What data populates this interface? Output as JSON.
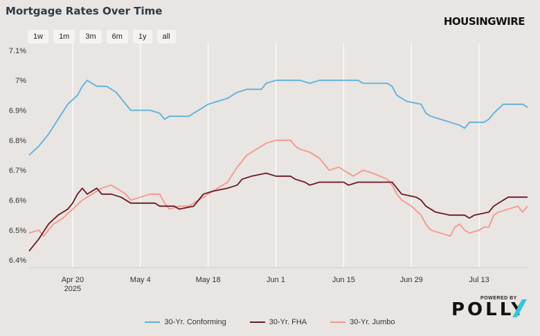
{
  "header": {
    "title": "Mortgage Rates Over Time",
    "brand": "HOUSINGWIRE"
  },
  "range_buttons": [
    "1w",
    "1m",
    "3m",
    "6m",
    "1y",
    "all"
  ],
  "footer": {
    "powered_by": "POWERED BY",
    "logo": "POLLY"
  },
  "colors": {
    "background": "#e8e5e2",
    "conforming": "#5bb0dc",
    "fha": "#6e1524",
    "jumbo": "#f7958c",
    "polly_accent": "#38c6d9"
  },
  "chart_data": {
    "type": "line",
    "title": "Mortgage Rates Over Time",
    "xlabel": "",
    "ylabel": "",
    "x_range": [
      "2025-04-11",
      "2025-07-23"
    ],
    "ylim": [
      6.375,
      7.125
    ],
    "x_ticks": [
      {
        "date": "2025-04-20",
        "label": "Apr 20",
        "sublabel": "2025"
      },
      {
        "date": "2025-05-04",
        "label": "May 4"
      },
      {
        "date": "2025-05-18",
        "label": "May 18"
      },
      {
        "date": "2025-06-01",
        "label": "Jun 1"
      },
      {
        "date": "2025-06-15",
        "label": "Jun 15"
      },
      {
        "date": "2025-06-29",
        "label": "Jun 29"
      },
      {
        "date": "2025-07-13",
        "label": "Jul 13"
      }
    ],
    "y_ticks": [
      {
        "value": 6.4,
        "label": "6.4%"
      },
      {
        "value": 6.5,
        "label": "6.5%"
      },
      {
        "value": 6.6,
        "label": "6.6%"
      },
      {
        "value": 6.7,
        "label": "6.7%"
      },
      {
        "value": 6.8,
        "label": "6.8%"
      },
      {
        "value": 6.9,
        "label": "6.9%"
      },
      {
        "value": 7.0,
        "label": "7%"
      },
      {
        "value": 7.1,
        "label": "7.1%"
      }
    ],
    "grid": "vertical",
    "legend_position": "bottom",
    "series": [
      {
        "name": "30-Yr. Conforming",
        "color": "#5bb0dc",
        "points": [
          [
            "2025-04-11",
            6.75
          ],
          [
            "2025-04-13",
            6.78
          ],
          [
            "2025-04-15",
            6.82
          ],
          [
            "2025-04-17",
            6.87
          ],
          [
            "2025-04-19",
            6.92
          ],
          [
            "2025-04-21",
            6.95
          ],
          [
            "2025-04-22",
            6.98
          ],
          [
            "2025-04-23",
            7.0
          ],
          [
            "2025-04-25",
            6.98
          ],
          [
            "2025-04-27",
            6.98
          ],
          [
            "2025-04-29",
            6.96
          ],
          [
            "2025-04-30",
            6.94
          ],
          [
            "2025-05-01",
            6.92
          ],
          [
            "2025-05-02",
            6.9
          ],
          [
            "2025-05-04",
            6.9
          ],
          [
            "2025-05-06",
            6.9
          ],
          [
            "2025-05-08",
            6.89
          ],
          [
            "2025-05-09",
            6.87
          ],
          [
            "2025-05-10",
            6.88
          ],
          [
            "2025-05-12",
            6.88
          ],
          [
            "2025-05-14",
            6.88
          ],
          [
            "2025-05-15",
            6.89
          ],
          [
            "2025-05-16",
            6.9
          ],
          [
            "2025-05-17",
            6.91
          ],
          [
            "2025-05-18",
            6.92
          ],
          [
            "2025-05-20",
            6.93
          ],
          [
            "2025-05-22",
            6.94
          ],
          [
            "2025-05-24",
            6.96
          ],
          [
            "2025-05-26",
            6.97
          ],
          [
            "2025-05-28",
            6.97
          ],
          [
            "2025-05-29",
            6.97
          ],
          [
            "2025-05-30",
            6.99
          ],
          [
            "2025-06-01",
            7.0
          ],
          [
            "2025-06-04",
            7.0
          ],
          [
            "2025-06-06",
            7.0
          ],
          [
            "2025-06-08",
            6.99
          ],
          [
            "2025-06-10",
            7.0
          ],
          [
            "2025-06-12",
            7.0
          ],
          [
            "2025-06-15",
            7.0
          ],
          [
            "2025-06-18",
            7.0
          ],
          [
            "2025-06-19",
            6.99
          ],
          [
            "2025-06-22",
            6.99
          ],
          [
            "2025-06-24",
            6.99
          ],
          [
            "2025-06-25",
            6.98
          ],
          [
            "2025-06-26",
            6.95
          ],
          [
            "2025-06-28",
            6.93
          ],
          [
            "2025-07-01",
            6.92
          ],
          [
            "2025-07-02",
            6.89
          ],
          [
            "2025-07-03",
            6.88
          ],
          [
            "2025-07-05",
            6.87
          ],
          [
            "2025-07-07",
            6.86
          ],
          [
            "2025-07-09",
            6.85
          ],
          [
            "2025-07-10",
            6.84
          ],
          [
            "2025-07-11",
            6.86
          ],
          [
            "2025-07-14",
            6.86
          ],
          [
            "2025-07-15",
            6.87
          ],
          [
            "2025-07-16",
            6.89
          ],
          [
            "2025-07-18",
            6.92
          ],
          [
            "2025-07-20",
            6.92
          ],
          [
            "2025-07-22",
            6.92
          ],
          [
            "2025-07-23",
            6.91
          ]
        ]
      },
      {
        "name": "30-Yr. FHA",
        "color": "#6e1524",
        "points": [
          [
            "2025-04-11",
            6.43
          ],
          [
            "2025-04-13",
            6.47
          ],
          [
            "2025-04-15",
            6.52
          ],
          [
            "2025-04-17",
            6.55
          ],
          [
            "2025-04-19",
            6.57
          ],
          [
            "2025-04-20",
            6.59
          ],
          [
            "2025-04-21",
            6.62
          ],
          [
            "2025-04-22",
            6.64
          ],
          [
            "2025-04-23",
            6.62
          ],
          [
            "2025-04-25",
            6.64
          ],
          [
            "2025-04-26",
            6.62
          ],
          [
            "2025-04-28",
            6.62
          ],
          [
            "2025-04-30",
            6.61
          ],
          [
            "2025-05-02",
            6.59
          ],
          [
            "2025-05-04",
            6.59
          ],
          [
            "2025-05-07",
            6.59
          ],
          [
            "2025-05-08",
            6.58
          ],
          [
            "2025-05-11",
            6.58
          ],
          [
            "2025-05-12",
            6.57
          ],
          [
            "2025-05-15",
            6.58
          ],
          [
            "2025-05-16",
            6.6
          ],
          [
            "2025-05-17",
            6.62
          ],
          [
            "2025-05-19",
            6.63
          ],
          [
            "2025-05-22",
            6.64
          ],
          [
            "2025-05-24",
            6.65
          ],
          [
            "2025-05-25",
            6.67
          ],
          [
            "2025-05-27",
            6.68
          ],
          [
            "2025-05-30",
            6.69
          ],
          [
            "2025-06-01",
            6.68
          ],
          [
            "2025-06-04",
            6.68
          ],
          [
            "2025-06-05",
            6.67
          ],
          [
            "2025-06-07",
            6.66
          ],
          [
            "2025-06-08",
            6.65
          ],
          [
            "2025-06-10",
            6.66
          ],
          [
            "2025-06-15",
            6.66
          ],
          [
            "2025-06-16",
            6.65
          ],
          [
            "2025-06-18",
            6.66
          ],
          [
            "2025-06-22",
            6.66
          ],
          [
            "2025-06-25",
            6.66
          ],
          [
            "2025-06-26",
            6.64
          ],
          [
            "2025-06-27",
            6.62
          ],
          [
            "2025-06-30",
            6.61
          ],
          [
            "2025-07-01",
            6.6
          ],
          [
            "2025-07-02",
            6.58
          ],
          [
            "2025-07-04",
            6.56
          ],
          [
            "2025-07-07",
            6.55
          ],
          [
            "2025-07-10",
            6.55
          ],
          [
            "2025-07-11",
            6.54
          ],
          [
            "2025-07-12",
            6.55
          ],
          [
            "2025-07-15",
            6.56
          ],
          [
            "2025-07-16",
            6.58
          ],
          [
            "2025-07-17",
            6.59
          ],
          [
            "2025-07-18",
            6.6
          ],
          [
            "2025-07-19",
            6.61
          ],
          [
            "2025-07-23",
            6.61
          ]
        ]
      },
      {
        "name": "30-Yr. Jumbo",
        "color": "#f7958c",
        "points": [
          [
            "2025-04-11",
            6.49
          ],
          [
            "2025-04-13",
            6.5
          ],
          [
            "2025-04-14",
            6.48
          ],
          [
            "2025-04-16",
            6.52
          ],
          [
            "2025-04-18",
            6.54
          ],
          [
            "2025-04-20",
            6.57
          ],
          [
            "2025-04-22",
            6.6
          ],
          [
            "2025-04-24",
            6.62
          ],
          [
            "2025-04-26",
            6.64
          ],
          [
            "2025-04-28",
            6.65
          ],
          [
            "2025-04-30",
            6.63
          ],
          [
            "2025-05-01",
            6.62
          ],
          [
            "2025-05-02",
            6.6
          ],
          [
            "2025-05-04",
            6.61
          ],
          [
            "2025-05-06",
            6.62
          ],
          [
            "2025-05-08",
            6.62
          ],
          [
            "2025-05-09",
            6.59
          ],
          [
            "2025-05-10",
            6.57
          ],
          [
            "2025-05-12",
            6.58
          ],
          [
            "2025-05-14",
            6.58
          ],
          [
            "2025-05-15",
            6.59
          ],
          [
            "2025-05-17",
            6.61
          ],
          [
            "2025-05-18",
            6.62
          ],
          [
            "2025-05-20",
            6.64
          ],
          [
            "2025-05-22",
            6.66
          ],
          [
            "2025-05-24",
            6.71
          ],
          [
            "2025-05-26",
            6.75
          ],
          [
            "2025-05-28",
            6.77
          ],
          [
            "2025-05-29",
            6.78
          ],
          [
            "2025-05-30",
            6.79
          ],
          [
            "2025-06-01",
            6.8
          ],
          [
            "2025-06-04",
            6.8
          ],
          [
            "2025-06-05",
            6.78
          ],
          [
            "2025-06-06",
            6.77
          ],
          [
            "2025-06-08",
            6.76
          ],
          [
            "2025-06-10",
            6.74
          ],
          [
            "2025-06-11",
            6.72
          ],
          [
            "2025-06-12",
            6.7
          ],
          [
            "2025-06-14",
            6.71
          ],
          [
            "2025-06-15",
            6.7
          ],
          [
            "2025-06-17",
            6.68
          ],
          [
            "2025-06-18",
            6.69
          ],
          [
            "2025-06-19",
            6.7
          ],
          [
            "2025-06-21",
            6.69
          ],
          [
            "2025-06-24",
            6.67
          ],
          [
            "2025-06-25",
            6.65
          ],
          [
            "2025-06-26",
            6.62
          ],
          [
            "2025-06-27",
            6.6
          ],
          [
            "2025-06-29",
            6.58
          ],
          [
            "2025-07-01",
            6.55
          ],
          [
            "2025-07-02",
            6.52
          ],
          [
            "2025-07-03",
            6.5
          ],
          [
            "2025-07-05",
            6.49
          ],
          [
            "2025-07-07",
            6.48
          ],
          [
            "2025-07-08",
            6.51
          ],
          [
            "2025-07-09",
            6.52
          ],
          [
            "2025-07-10",
            6.5
          ],
          [
            "2025-07-11",
            6.49
          ],
          [
            "2025-07-13",
            6.5
          ],
          [
            "2025-07-14",
            6.51
          ],
          [
            "2025-07-15",
            6.51
          ],
          [
            "2025-07-16",
            6.55
          ],
          [
            "2025-07-17",
            6.56
          ],
          [
            "2025-07-19",
            6.57
          ],
          [
            "2025-07-21",
            6.58
          ],
          [
            "2025-07-22",
            6.56
          ],
          [
            "2025-07-23",
            6.58
          ]
        ]
      }
    ]
  }
}
